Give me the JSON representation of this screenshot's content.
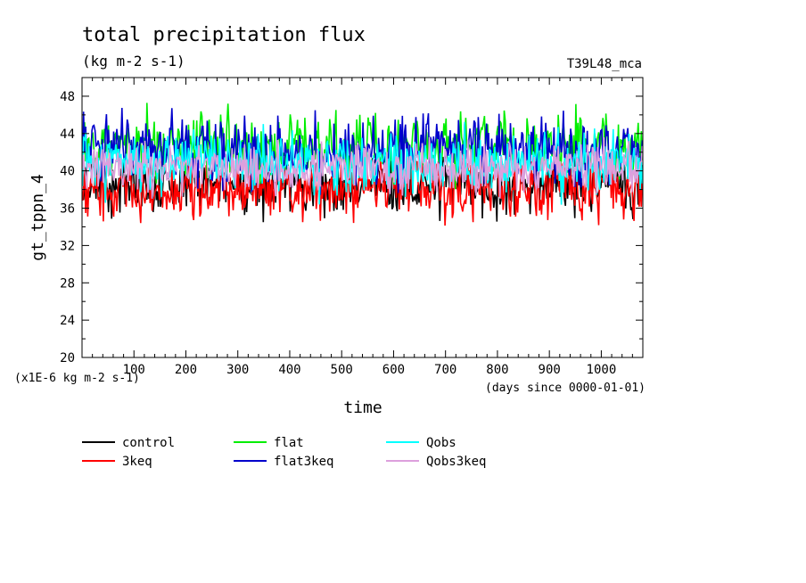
{
  "chart_data": {
    "type": "line",
    "title": "total precipitation flux",
    "subtitle": "(kg m-2 s-1)",
    "run_label": "T39L48_mca",
    "ylabel": "gt_tppn_4",
    "xlabel": "time",
    "y_unit_note": "(x1E-6 kg m-2 s-1)",
    "x_unit_note": "(days since 0000-01-01)",
    "xlim": [
      0,
      1080
    ],
    "ylim": [
      20,
      50
    ],
    "x_ticks": [
      100,
      200,
      300,
      400,
      500,
      600,
      700,
      800,
      900,
      1000
    ],
    "x_tick_labels": [
      "100",
      "200",
      "300",
      "400",
      "500",
      "600",
      "700",
      "800",
      "900",
      "1000"
    ],
    "y_ticks": [
      20,
      24,
      28,
      32,
      36,
      40,
      44,
      48
    ],
    "y_tick_labels": [
      "20",
      "24",
      "28",
      "32",
      "36",
      "40",
      "44",
      "48"
    ],
    "legend_placement": "below",
    "series": [
      {
        "name": "control",
        "color": "#000000",
        "mean": 38.5,
        "amp": 1.6,
        "min": 32.4,
        "max": 41.5
      },
      {
        "name": "3keq",
        "color": "#ff0000",
        "mean": 38.0,
        "amp": 1.6,
        "min": 32.3,
        "max": 41.0
      },
      {
        "name": "flat",
        "color": "#00ee00",
        "mean": 42.6,
        "amp": 1.7,
        "min": 37.5,
        "max": 48.0
      },
      {
        "name": "flat3keq",
        "color": "#0000cc",
        "mean": 42.2,
        "amp": 1.8,
        "min": 35.8,
        "max": 47.9
      },
      {
        "name": "Qobs",
        "color": "#00ffff",
        "mean": 40.8,
        "amp": 1.6,
        "min": 35.5,
        "max": 47.2
      },
      {
        "name": "Qobs3keq",
        "color": "#dda0dd",
        "mean": 40.3,
        "amp": 1.3,
        "min": 35.0,
        "max": 44.6
      }
    ]
  }
}
